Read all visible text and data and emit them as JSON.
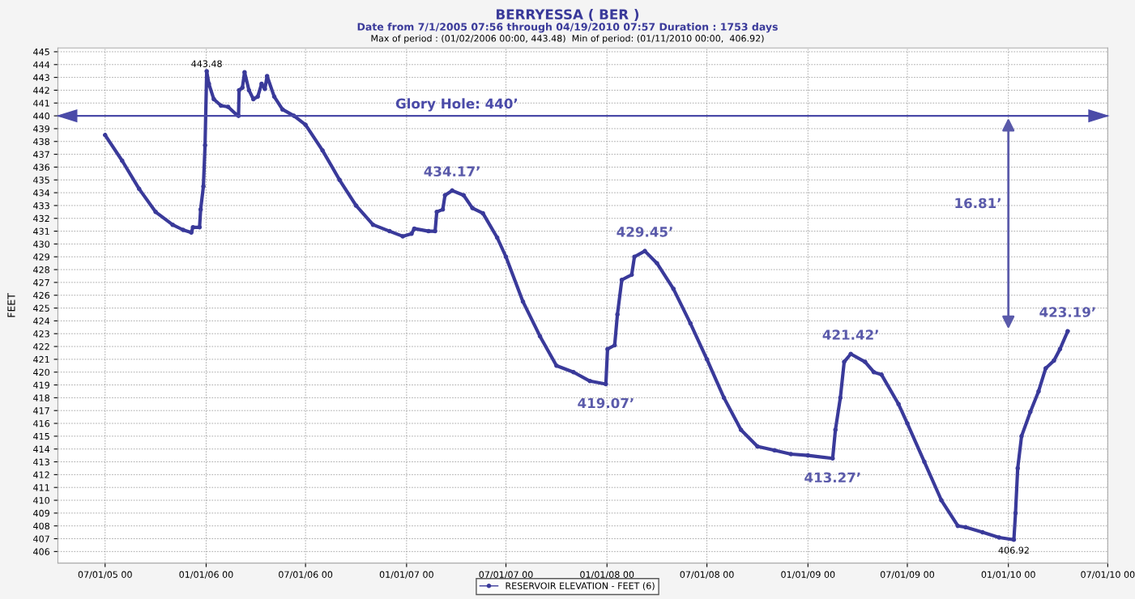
{
  "chart_data": {
    "type": "line",
    "title": "BERRYESSA ( BER )",
    "subtitle": "Date from 7/1/2005 07:56 through 04/19/2010 07:57 Duration : 1753 days",
    "ylabel": "FEET",
    "x": [
      "2005-07-01",
      "2005-08-01",
      "2005-09-01",
      "2005-10-01",
      "2005-11-01",
      "2005-11-20",
      "2005-12-05",
      "2005-12-08",
      "2005-12-20",
      "2005-12-22",
      "2005-12-27",
      "2005-12-30",
      "2006-01-02",
      "2006-01-06",
      "2006-01-15",
      "2006-01-28",
      "2006-02-10",
      "2006-02-25",
      "2006-03-01",
      "2006-03-02",
      "2006-03-08",
      "2006-03-12",
      "2006-03-20",
      "2006-03-28",
      "2006-04-05",
      "2006-04-12",
      "2006-04-18",
      "2006-04-22",
      "2006-05-05",
      "2006-05-20",
      "2006-06-10",
      "2006-07-01",
      "2006-08-01",
      "2006-09-01",
      "2006-10-01",
      "2006-11-01",
      "2006-12-01",
      "2006-12-25",
      "2007-01-10",
      "2007-01-15",
      "2007-02-10",
      "2007-02-22",
      "2007-02-25",
      "2007-03-08",
      "2007-03-12",
      "2007-03-25",
      "2007-04-15",
      "2007-05-01",
      "2007-05-20",
      "2007-06-15",
      "2007-07-01",
      "2007-08-01",
      "2007-09-01",
      "2007-10-01",
      "2007-11-01",
      "2007-12-01",
      "2007-12-30",
      "2008-01-02",
      "2008-01-15",
      "2008-01-20",
      "2008-01-28",
      "2008-02-15",
      "2008-02-20",
      "2008-03-10",
      "2008-04-01",
      "2008-05-01",
      "2008-06-01",
      "2008-07-01",
      "2008-08-01",
      "2008-09-01",
      "2008-10-01",
      "2008-11-01",
      "2008-12-01",
      "2009-01-01",
      "2009-02-15",
      "2009-02-20",
      "2009-03-01",
      "2009-03-08",
      "2009-03-20",
      "2009-04-15",
      "2009-05-01",
      "2009-05-15",
      "2009-06-15",
      "2009-07-01",
      "2009-08-01",
      "2009-09-01",
      "2009-10-01",
      "2009-10-15",
      "2009-11-15",
      "2009-12-15",
      "2010-01-11",
      "2010-01-14",
      "2010-01-18",
      "2010-01-25",
      "2010-02-10",
      "2010-02-25",
      "2010-03-10",
      "2010-03-25",
      "2010-04-05",
      "2010-04-19"
    ],
    "series": [
      {
        "name": "RESERVOIR ELEVATION - FEET (6)",
        "color": "#3a3a9a",
        "values": [
          438.5,
          436.5,
          434.3,
          432.5,
          431.5,
          431.1,
          430.9,
          431.3,
          431.3,
          432.7,
          434.5,
          437.7,
          443.48,
          442.5,
          441.3,
          440.8,
          440.7,
          440.1,
          440.0,
          442.0,
          442.2,
          443.4,
          442.0,
          441.3,
          441.5,
          442.5,
          442.1,
          443.1,
          441.5,
          440.5,
          440.0,
          439.3,
          437.3,
          435.0,
          433.0,
          431.5,
          431.0,
          430.6,
          430.8,
          431.2,
          431.0,
          431.0,
          432.5,
          432.7,
          433.8,
          434.17,
          433.8,
          432.8,
          432.4,
          430.5,
          429.0,
          425.5,
          422.8,
          420.5,
          420.0,
          419.3,
          419.07,
          421.8,
          422.1,
          424.5,
          427.2,
          427.6,
          429.0,
          429.45,
          428.5,
          426.5,
          423.8,
          421.0,
          418.0,
          415.5,
          414.2,
          413.9,
          413.6,
          413.5,
          413.27,
          415.5,
          418.0,
          420.8,
          421.42,
          420.8,
          420.0,
          419.8,
          417.5,
          416.0,
          413.0,
          410.0,
          408.0,
          407.9,
          407.5,
          407.1,
          406.92,
          409.0,
          412.5,
          415.0,
          416.9,
          418.5,
          420.3,
          420.9,
          421.8,
          423.19
        ]
      }
    ],
    "xlim": [
      "2005-04-06",
      "2010-07-01"
    ],
    "xticks": [
      {
        "value": "2005-07-01",
        "label": "07/01/05 00"
      },
      {
        "value": "2006-01-01",
        "label": "01/01/06 00"
      },
      {
        "value": "2006-07-01",
        "label": "07/01/06 00"
      },
      {
        "value": "2007-01-01",
        "label": "01/01/07 00"
      },
      {
        "value": "2007-07-01",
        "label": "07/01/07 00"
      },
      {
        "value": "2008-01-01",
        "label": "01/01/08 00"
      },
      {
        "value": "2008-07-01",
        "label": "07/01/08 00"
      },
      {
        "value": "2009-01-01",
        "label": "01/01/09 00"
      },
      {
        "value": "2009-07-01",
        "label": "07/01/09 00"
      },
      {
        "value": "2010-01-01",
        "label": "01/01/10 00"
      },
      {
        "value": "2010-07-01",
        "label": "07/01/10 00"
      }
    ],
    "ylim": [
      405.1,
      445.3
    ],
    "yticks": [
      406,
      407,
      408,
      409,
      410,
      411,
      412,
      413,
      414,
      415,
      416,
      417,
      418,
      419,
      420,
      421,
      422,
      423,
      424,
      425,
      426,
      427,
      428,
      429,
      430,
      431,
      432,
      433,
      434,
      435,
      436,
      437,
      438,
      439,
      440,
      441,
      442,
      443,
      444,
      445
    ],
    "ref_lines": [
      {
        "axis": "y",
        "value": 440,
        "label": "Glory Hole: 440’",
        "color": "#4a4aa8"
      }
    ],
    "annotations": [
      "Max of period : (01/02/2006 00:00, 443.48)  Min of period: (01/11/2010 00:00,  406.92)",
      {
        "text": "443.48",
        "x": "2006-01-02",
        "y": 443.48
      },
      {
        "text": "406.92",
        "x": "2010-01-11",
        "y": 406.92
      },
      {
        "text": "434.17’",
        "x": "2007-03-25",
        "y": 434.17
      },
      {
        "text": "419.07’",
        "x": "2007-12-30",
        "y": 419.07
      },
      {
        "text": "429.45’",
        "x": "2008-03-10",
        "y": 429.45
      },
      {
        "text": "413.27’",
        "x": "2009-02-15",
        "y": 413.27
      },
      {
        "text": "421.42’",
        "x": "2009-03-20",
        "y": 421.42
      },
      {
        "text": "423.19’",
        "x": "2010-04-19",
        "y": 423.19
      },
      "16.81’"
    ],
    "grid": true,
    "legend": "bottom",
    "marker": "circle",
    "line_style": "solid"
  }
}
